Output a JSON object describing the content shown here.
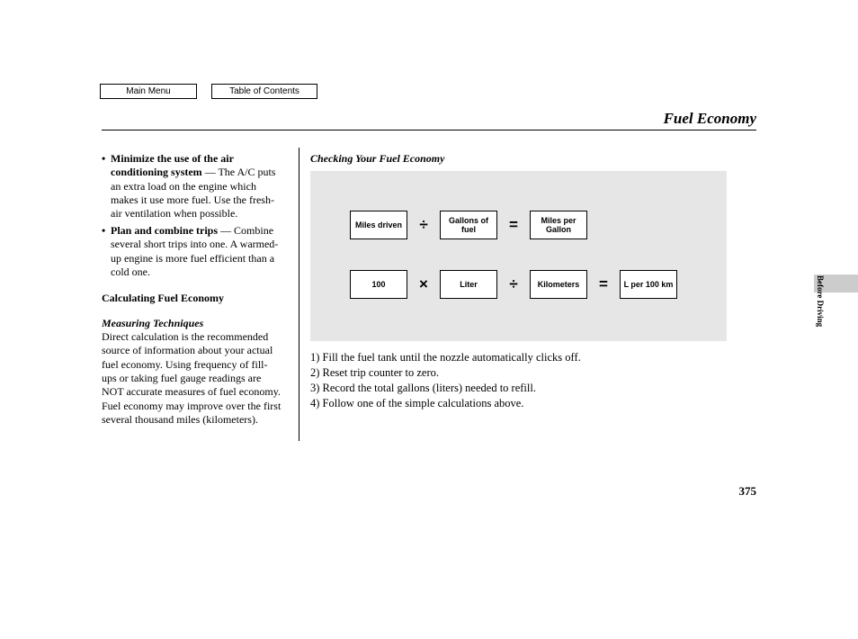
{
  "nav": {
    "main_menu": "Main Menu",
    "toc": "Table of Contents"
  },
  "page_title": "Fuel Economy",
  "side_label": "Before Driving",
  "page_number": "375",
  "left": {
    "bullets": [
      {
        "lead": "Minimize the use of the air conditioning system",
        "cont": " — The A/C puts an extra load on the engine which makes it use more fuel. Use the fresh-air ventilation when possible."
      },
      {
        "lead": "Plan and combine trips",
        "cont": " — Combine several short trips into one. A warmed-up engine is more fuel efficient than a cold one."
      }
    ],
    "calc_heading": "Calculating Fuel Economy",
    "measuring_heading": "Measuring Techniques",
    "measuring_body": "Direct calculation is the recommended source of information about your actual fuel economy. Using frequency of fill-ups or taking fuel gauge readings are NOT accurate measures of fuel economy. Fuel economy may improve over the first several thousand miles (kilometers)."
  },
  "right": {
    "heading": "Checking Your Fuel Economy",
    "diagram": {
      "background_color": "#e6e6e6",
      "box_bg": "#ffffff",
      "box_border": "#000000",
      "row1": {
        "box1": "Miles driven",
        "op1": "÷",
        "box2": "Gallons of fuel",
        "op2": "=",
        "box3": "Miles per Gallon"
      },
      "row2": {
        "box1": "100",
        "op1": "×",
        "box2": "Liter",
        "op2": "÷",
        "box3": "Kilometers",
        "op3": "=",
        "box4": "L per 100 km"
      }
    },
    "steps": {
      "s1": "1) Fill the fuel tank until the nozzle automatically clicks off.",
      "s2": "2) Reset trip counter to zero.",
      "s3": "3) Record the total gallons (liters) needed to refill.",
      "s4": "4) Follow one of the simple calculations above."
    }
  }
}
